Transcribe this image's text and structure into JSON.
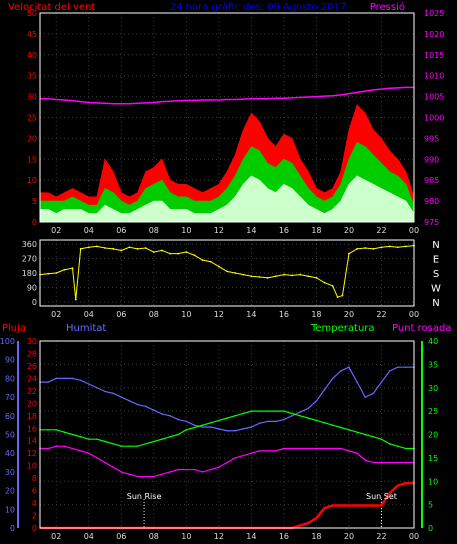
{
  "header": {
    "left_title": "Velocitat del vent",
    "center_title": "24 hora gràfic des. 09 Agosto 2017",
    "right_title": "Pressió"
  },
  "colors": {
    "wind_gust": "#ff0000",
    "wind_avg": "#00cc00",
    "wind_min": "#ccffcc",
    "pressure": "#ff00ff",
    "direction": "#ffff00",
    "humidity": "#6666ff",
    "temperature": "#00ff00",
    "dewpoint": "#ff00ff",
    "rain": "#ff0000",
    "grid": "#3a3a3a",
    "axis_left": "#ff0000",
    "axis_right": "#ff00ff",
    "frame": "#ffffff"
  },
  "chart_data": [
    {
      "type": "area",
      "id": "wind_pressure",
      "title": "",
      "x_ticks": [
        "02",
        "04",
        "06",
        "08",
        "10",
        "12",
        "14",
        "16",
        "18",
        "20",
        "22",
        "00"
      ],
      "xlim": [
        1,
        24
      ],
      "left_axis": {
        "label": "Velocitat del vent",
        "ylim": [
          0,
          50
        ],
        "ticks": [
          0,
          5,
          10,
          15,
          20,
          25,
          30,
          35,
          40,
          45,
          50
        ]
      },
      "right_axis": {
        "label": "Pressió",
        "ylim": [
          975,
          1025
        ],
        "ticks": [
          975,
          980,
          985,
          990,
          995,
          1000,
          1005,
          1010,
          1015,
          1020,
          1025
        ]
      },
      "x": [
        1,
        1.5,
        2,
        2.5,
        3,
        3.5,
        4,
        4.5,
        5,
        5.5,
        6,
        6.5,
        7,
        7.5,
        8,
        8.5,
        9,
        9.5,
        10,
        10.5,
        11,
        11.5,
        12,
        12.5,
        13,
        13.5,
        14,
        14.5,
        15,
        15.5,
        16,
        16.5,
        17,
        17.5,
        18,
        18.5,
        19,
        19.5,
        20,
        20.5,
        21,
        21.5,
        22,
        22.5,
        23,
        23.5,
        24
      ],
      "series": [
        {
          "name": "wind_gust",
          "values": [
            7,
            7,
            6,
            7,
            8,
            7,
            6,
            6,
            15,
            12,
            7,
            6,
            7,
            12,
            13,
            15,
            10,
            9,
            9,
            8,
            7,
            8,
            9,
            12,
            16,
            22,
            26,
            24,
            20,
            18,
            21,
            20,
            15,
            12,
            8,
            7,
            8,
            12,
            22,
            28,
            26,
            22,
            20,
            17,
            15,
            12,
            6
          ]
        },
        {
          "name": "wind_avg",
          "values": [
            5,
            5,
            5,
            5,
            6,
            5,
            4,
            4,
            8,
            7,
            5,
            4,
            5,
            8,
            9,
            10,
            7,
            6,
            6,
            5,
            5,
            5,
            6,
            8,
            11,
            15,
            18,
            17,
            14,
            13,
            15,
            14,
            11,
            8,
            6,
            5,
            6,
            9,
            15,
            19,
            18,
            16,
            14,
            12,
            11,
            9,
            4
          ]
        },
        {
          "name": "wind_min",
          "values": [
            3,
            3,
            2,
            3,
            3,
            3,
            2,
            2,
            4,
            3,
            2,
            2,
            3,
            4,
            5,
            5,
            3,
            3,
            3,
            2,
            2,
            2,
            3,
            4,
            6,
            9,
            11,
            10,
            8,
            7,
            9,
            8,
            6,
            4,
            3,
            2,
            3,
            5,
            9,
            11,
            10,
            9,
            8,
            7,
            6,
            5,
            2
          ]
        },
        {
          "name": "pressure",
          "values": [
            1004.5,
            1004.5,
            1004.3,
            1004.2,
            1004.0,
            1003.8,
            1003.6,
            1003.5,
            1003.4,
            1003.3,
            1003.3,
            1003.3,
            1003.4,
            1003.5,
            1003.6,
            1003.8,
            1003.9,
            1004.0,
            1004.1,
            1004.1,
            1004.2,
            1004.2,
            1004.2,
            1004.3,
            1004.3,
            1004.4,
            1004.5,
            1004.5,
            1004.5,
            1004.6,
            1004.6,
            1004.7,
            1004.8,
            1004.9,
            1005.0,
            1005.1,
            1005.2,
            1005.4,
            1005.7,
            1006.0,
            1006.3,
            1006.6,
            1006.8,
            1007.0,
            1007.1,
            1007.2,
            1007.2
          ]
        }
      ]
    },
    {
      "type": "line",
      "id": "wind_direction",
      "title": "",
      "ylim": [
        0,
        360
      ],
      "y_ticks": [
        0,
        90,
        180,
        270,
        360
      ],
      "right_labels": [
        "N",
        "W",
        "S",
        "E",
        "N"
      ],
      "x": [
        1,
        1.5,
        2,
        2.5,
        3,
        3.2,
        3.5,
        4,
        4.5,
        5,
        5.5,
        6,
        6.5,
        7,
        7.5,
        8,
        8.5,
        9,
        9.5,
        10,
        10.5,
        11,
        11.5,
        12,
        12.5,
        13,
        13.5,
        14,
        14.5,
        15,
        15.5,
        16,
        16.5,
        17,
        17.5,
        18,
        18.5,
        19,
        19.3,
        19.6,
        20,
        20.5,
        21,
        21.5,
        22,
        22.5,
        23,
        23.5,
        24
      ],
      "series": [
        {
          "name": "direction",
          "values": [
            170,
            175,
            180,
            200,
            210,
            15,
            330,
            340,
            345,
            335,
            330,
            320,
            340,
            330,
            335,
            310,
            320,
            300,
            300,
            310,
            290,
            260,
            250,
            220,
            190,
            180,
            170,
            160,
            155,
            150,
            160,
            170,
            165,
            170,
            160,
            150,
            120,
            100,
            30,
            40,
            300,
            330,
            335,
            330,
            340,
            345,
            340,
            345,
            350
          ]
        }
      ]
    },
    {
      "type": "line",
      "id": "temp_hum_rain",
      "title": "",
      "labels": {
        "rain": "Pluja",
        "humidity": "Humitat",
        "temperature": "Temperatura",
        "dewpoint": "Punt rosada"
      },
      "axes": {
        "humidity": {
          "ylim": [
            0,
            100
          ],
          "ticks": [
            0,
            10,
            20,
            30,
            40,
            50,
            60,
            70,
            80,
            90,
            100
          ]
        },
        "rain": {
          "ylim": [
            0,
            30
          ],
          "ticks": [
            0,
            2,
            4,
            6,
            8,
            10,
            12,
            14,
            16,
            18,
            20,
            22,
            24,
            26,
            28,
            30
          ]
        },
        "temperature": {
          "ylim": [
            0,
            40
          ],
          "ticks": [
            0,
            5,
            10,
            15,
            20,
            25,
            30,
            35,
            40
          ]
        }
      },
      "annotations": [
        {
          "text": "Sun Rise",
          "x": 7.4
        },
        {
          "text": "Sun Set",
          "x": 22.0
        }
      ],
      "x": [
        1,
        1.5,
        2,
        2.5,
        3,
        3.5,
        4,
        4.5,
        5,
        5.5,
        6,
        6.5,
        7,
        7.5,
        8,
        8.5,
        9,
        9.5,
        10,
        10.5,
        11,
        11.5,
        12,
        12.5,
        13,
        13.5,
        14,
        14.5,
        15,
        15.5,
        16,
        16.5,
        17,
        17.5,
        18,
        18.5,
        19,
        19.5,
        20,
        20.5,
        21,
        21.5,
        22,
        22.5,
        23,
        23.5,
        24
      ],
      "series": [
        {
          "name": "humidity",
          "axis": "humidity",
          "values": [
            78,
            78,
            80,
            80,
            80,
            79,
            77,
            75,
            73,
            72,
            70,
            68,
            66,
            65,
            63,
            61,
            60,
            58,
            57,
            55,
            54,
            54,
            53,
            52,
            52,
            53,
            54,
            56,
            57,
            57,
            58,
            60,
            62,
            64,
            68,
            74,
            80,
            84,
            86,
            78,
            70,
            72,
            78,
            84,
            86,
            86,
            86
          ]
        },
        {
          "name": "temperature",
          "axis": "temperature",
          "values": [
            21,
            21,
            21,
            20.5,
            20,
            19.5,
            19,
            19,
            18.5,
            18,
            17.5,
            17.5,
            17.5,
            18,
            18.5,
            19,
            19.5,
            20,
            21,
            21.5,
            22,
            22.5,
            23,
            23.5,
            24,
            24.5,
            25,
            25,
            25,
            25,
            25,
            24.5,
            24,
            23.5,
            23,
            22.5,
            22,
            21.5,
            21,
            20.5,
            20,
            19.5,
            19,
            18,
            17.5,
            17,
            17
          ]
        },
        {
          "name": "dewpoint",
          "axis": "temperature",
          "values": [
            17,
            17,
            17.5,
            17.5,
            17,
            16.5,
            16,
            15,
            14,
            13,
            12,
            11.5,
            11,
            11,
            11,
            11.5,
            12,
            12.5,
            12.5,
            12.5,
            12,
            12.5,
            13,
            14,
            15,
            15.5,
            16,
            16.5,
            16.5,
            16.5,
            17,
            17,
            17,
            17,
            17,
            17,
            17,
            17,
            16.5,
            16,
            14.5,
            14,
            14,
            14,
            14,
            14,
            14
          ]
        },
        {
          "name": "rain",
          "axis": "rain",
          "values": [
            0,
            0,
            0,
            0,
            0,
            0,
            0,
            0,
            0,
            0,
            0,
            0,
            0,
            0,
            0,
            0,
            0,
            0,
            0,
            0,
            0,
            0,
            0,
            0,
            0,
            0,
            0,
            0,
            0,
            0,
            0,
            0,
            0.4,
            0.8,
            1.6,
            3.2,
            3.6,
            3.6,
            3.6,
            3.6,
            3.6,
            3.6,
            3.6,
            5.6,
            6.8,
            7.2,
            7.2
          ]
        }
      ]
    }
  ]
}
